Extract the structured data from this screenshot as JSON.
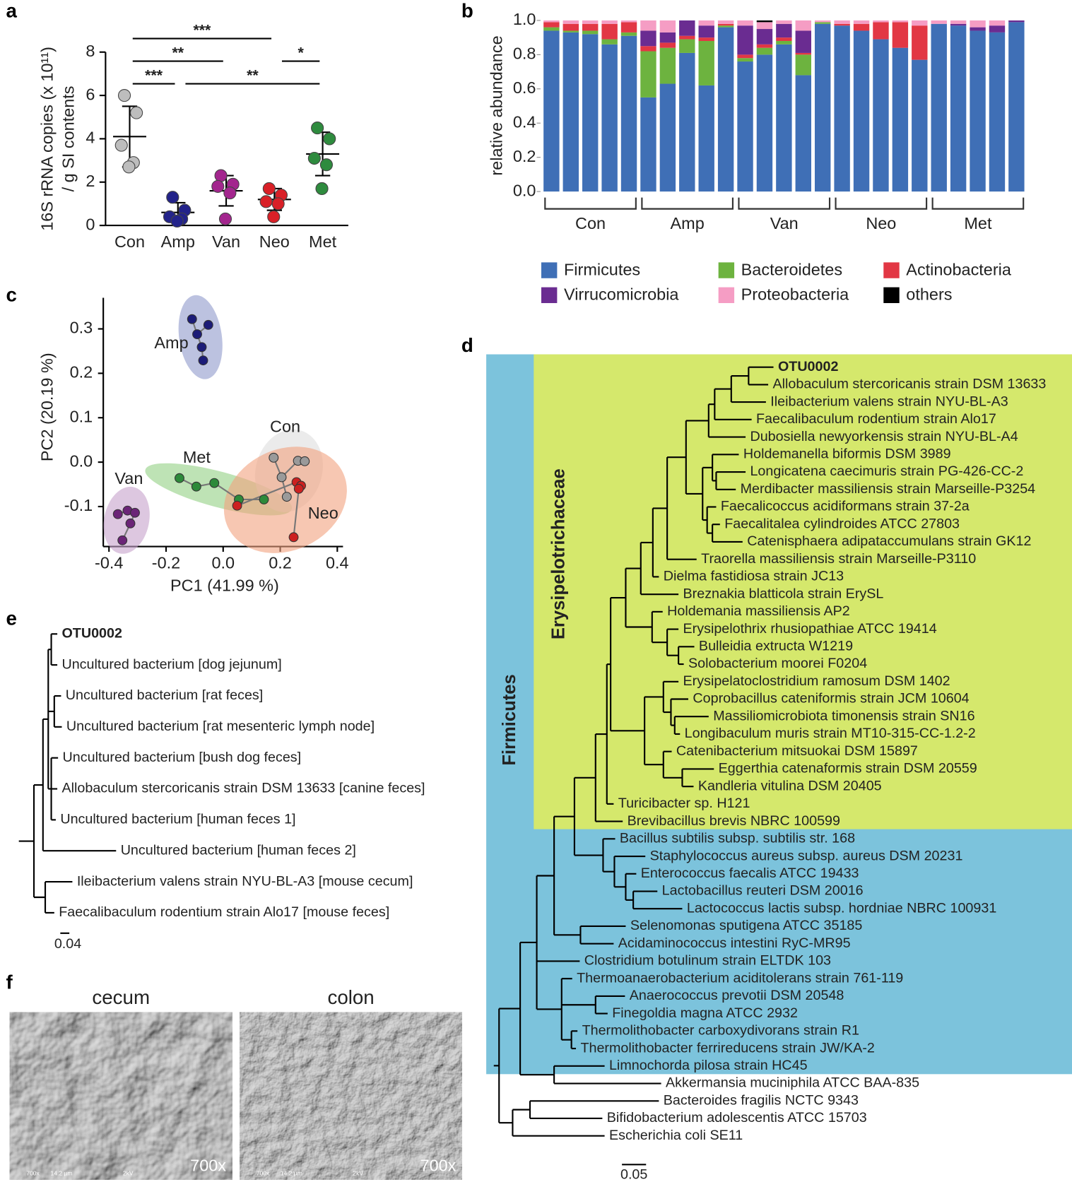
{
  "chart_data": [
    {
      "type": "dot",
      "panel": "a",
      "y_label": [
        "16S rRNA copies (x 10¹¹)",
        "/ g SI contents"
      ],
      "categories": [
        "Con",
        "Amp",
        "Van",
        "Neo",
        "Met"
      ],
      "colors": [
        "#bdbdbd",
        "#23238a",
        "#a3268e",
        "#d92027",
        "#2e8b3e"
      ],
      "values": [
        [
          6.0,
          5.2,
          3.7,
          2.9,
          2.7
        ],
        [
          1.3,
          0.7,
          0.4,
          0.3,
          0.2
        ],
        [
          2.3,
          1.9,
          1.8,
          1.5,
          0.3
        ],
        [
          1.7,
          1.4,
          1.1,
          1.0,
          0.4
        ],
        [
          4.5,
          4.0,
          3.1,
          2.8,
          1.7
        ]
      ],
      "mean": [
        4.1,
        0.6,
        1.6,
        1.2,
        3.3
      ],
      "sd": [
        1.4,
        0.45,
        0.7,
        0.5,
        1.0
      ],
      "ylim": [
        0,
        8
      ],
      "yticks": [
        0,
        2,
        4,
        6,
        8
      ],
      "comparisons": [
        {
          "groups": [
            "Con",
            "Neo"
          ],
          "label": "***"
        },
        {
          "groups": [
            "Con",
            "Van"
          ],
          "label": "**"
        },
        {
          "groups": [
            "Con",
            "Amp"
          ],
          "label": "***"
        },
        {
          "groups": [
            "Neo",
            "Met"
          ],
          "label": "*"
        },
        {
          "groups": [
            "Amp",
            "Met"
          ],
          "label": "**"
        }
      ]
    },
    {
      "type": "stacked_bar",
      "panel": "b",
      "y_label": "relative abundance",
      "categories": [
        null,
        null,
        null,
        null,
        null,
        null,
        null,
        null,
        null,
        null,
        null,
        null,
        null,
        null,
        null,
        null,
        null,
        null,
        null,
        null,
        null,
        null,
        null,
        null,
        null
      ],
      "groups": [
        "Con",
        "Amp",
        "Van",
        "Neo",
        "Met"
      ],
      "ylim": [
        0,
        1
      ],
      "yticks": [
        {
          "value": 0,
          "label": "0.0"
        },
        0.2,
        0.4,
        0.6,
        0.8,
        {
          "value": 1,
          "label": "1.0"
        }
      ],
      "series": [
        {
          "name": "Firmicutes",
          "color": "#3f6fb6",
          "values": [
            0.94,
            0.93,
            0.92,
            0.86,
            0.91,
            0.55,
            0.63,
            0.81,
            0.62,
            0.96,
            0.76,
            0.8,
            0.86,
            0.68,
            0.98,
            0.97,
            0.94,
            0.89,
            0.84,
            0.77,
            0.98,
            0.97,
            0.94,
            0.93,
            0.99
          ]
        },
        {
          "name": "Bacteroidetes",
          "color": "#6db33f",
          "values": [
            0.02,
            0.01,
            0.02,
            0.03,
            0.02,
            0.27,
            0.21,
            0.08,
            0.26,
            0.01,
            0.02,
            0.04,
            0.02,
            0.12,
            0.01,
            0,
            0,
            0,
            0,
            0,
            0,
            0,
            0,
            0,
            0
          ]
        },
        {
          "name": "Actinobacteria",
          "color": "#e23744",
          "values": [
            0.03,
            0.04,
            0.04,
            0.09,
            0.06,
            0.03,
            0.03,
            0.02,
            0.02,
            0.01,
            0.02,
            0.02,
            0.02,
            0.01,
            0,
            0.01,
            0.04,
            0.1,
            0.15,
            0.2,
            0,
            0,
            0,
            0,
            0
          ]
        },
        {
          "name": "Virrucomicrobia",
          "color": "#6a2c91",
          "values": [
            0,
            0,
            0,
            0,
            0,
            0.09,
            0.06,
            0.09,
            0.07,
            0,
            0.17,
            0.09,
            0.08,
            0.13,
            0,
            0,
            0,
            0,
            0,
            0,
            0,
            0.01,
            0.02,
            0.04,
            0.01
          ]
        },
        {
          "name": "Proteobacteria",
          "color": "#f59dc4",
          "values": [
            0.01,
            0.02,
            0.02,
            0.02,
            0.01,
            0.06,
            0.07,
            0,
            0.03,
            0.02,
            0.03,
            0.04,
            0.02,
            0.06,
            0.01,
            0.02,
            0.02,
            0.01,
            0.01,
            0.03,
            0.02,
            0.02,
            0.04,
            0.03,
            0
          ]
        },
        {
          "name": "others",
          "color": "#000000",
          "values": [
            0,
            0,
            0,
            0,
            0,
            0,
            0,
            0,
            0,
            0,
            0,
            0.01,
            0,
            0,
            0,
            0,
            0,
            0,
            0,
            0,
            0,
            0,
            0,
            0,
            0
          ]
        }
      ]
    },
    {
      "type": "scatter",
      "panel": "c",
      "x_label": "PC1 (41.99 %)",
      "y_label": "PC2 (20.19 %)",
      "xlim": [
        -0.42,
        0.42
      ],
      "ylim": [
        -0.19,
        0.37
      ],
      "xticks": [
        -0.4,
        -0.2,
        {
          "value": 0,
          "label": "0.0"
        },
        0.2,
        0.4
      ],
      "yticks": [
        -0.1,
        {
          "value": 0,
          "label": "0.0"
        },
        0.1,
        0.2,
        0.3
      ],
      "series": [
        {
          "name": "Amp",
          "color": "#1c1c78",
          "fill": "#8f9acb",
          "x": [
            -0.109,
            -0.052,
            -0.091,
            -0.075,
            -0.07
          ],
          "y": [
            0.322,
            0.309,
            0.288,
            0.259,
            0.229
          ]
        },
        {
          "name": "Van",
          "color": "#6b2477",
          "fill": "#c7a2cb",
          "x": [
            -0.369,
            -0.335,
            -0.309,
            -0.325,
            -0.353
          ],
          "y": [
            -0.117,
            -0.109,
            -0.114,
            -0.138,
            -0.176
          ]
        },
        {
          "name": "Met",
          "color": "#2d8a3a",
          "fill": "#93d083",
          "x": [
            -0.153,
            -0.094,
            -0.031,
            0.055,
            0.143
          ],
          "y": [
            -0.036,
            -0.055,
            -0.047,
            -0.084,
            -0.084
          ]
        },
        {
          "name": "Con",
          "color": "#9a9a9a",
          "fill": "#dedede",
          "x": [
            0.177,
            0.262,
            0.286,
            0.205,
            0.223
          ],
          "y": [
            0.01,
            0.003,
            0.002,
            -0.034,
            -0.078
          ]
        },
        {
          "name": "Neo",
          "color": "#cc2020",
          "fill": "#f1a27e",
          "x": [
            0.257,
            0.273,
            0.049,
            0.247,
            0.265
          ],
          "y": [
            -0.045,
            -0.053,
            -0.098,
            -0.169,
            -0.06
          ]
        }
      ]
    }
  ],
  "tree_d": {
    "panel": "d",
    "clades": [
      {
        "label": "Firmicutes",
        "color": "#7cc3dc"
      },
      {
        "label": "Erysipelotrichaceae",
        "color": "#d5e86c"
      }
    ],
    "leaves": [
      {
        "label": "OTU0002",
        "bold": true
      },
      {
        "label": "Allobaculum stercoricanis strain DSM 13633"
      },
      {
        "label": "Ileibacterium valens strain NYU-BL-A3"
      },
      {
        "label": "Faecalibaculum rodentium strain Alo17"
      },
      {
        "label": "Dubosiella newyorkensis strain NYU-BL-A4"
      },
      {
        "label": "Holdemanella biformis DSM 3989"
      },
      {
        "label": "Longicatena caecimuris strain PG-426-CC-2"
      },
      {
        "label": "Merdibacter massiliensis strain Marseille-P3254"
      },
      {
        "label": "Faecalicoccus acidiformans strain 37-2a"
      },
      {
        "label": "Faecalitalea cylindroides ATCC 27803"
      },
      {
        "label": "Catenisphaera adipataccumulans strain GK12"
      },
      {
        "label": "Traorella massiliensis strain Marseille-P3110"
      },
      {
        "label": "Dielma fastidiosa strain JC13"
      },
      {
        "label": "Breznakia blatticola strain ErySL"
      },
      {
        "label": "Holdemania massiliensis AP2"
      },
      {
        "label": "Erysipelothrix rhusiopathiae ATCC 19414"
      },
      {
        "label": "Bulleidia extructa W1219"
      },
      {
        "label": "Solobacterium moorei F0204"
      },
      {
        "label": "Erysipelatoclostridium ramosum DSM 1402"
      },
      {
        "label": "Coprobacillus cateniformis strain JCM 10604"
      },
      {
        "label": "Massiliomicrobiota timonensis strain SN16"
      },
      {
        "label": "Longibaculum muris strain MT10-315-CC-1.2-2"
      },
      {
        "label": "Catenibacterium mitsuokai DSM 15897"
      },
      {
        "label": "Eggerthia catenaformis strain DSM 20559"
      },
      {
        "label": "Kandleria vitulina DSM 20405"
      },
      {
        "label": "Turicibacter sp. H121"
      },
      {
        "label": "Brevibacillus brevis NBRC 100599"
      },
      {
        "label": "Bacillus subtilis subsp. subtilis str. 168"
      },
      {
        "label": "Staphylococcus aureus subsp. aureus DSM 20231"
      },
      {
        "label": "Enterococcus faecalis ATCC 19433"
      },
      {
        "label": "Lactobacillus reuteri DSM 20016"
      },
      {
        "label": "Lactococcus lactis subsp. hordniae NBRC 100931"
      },
      {
        "label": "Selenomonas sputigena ATCC 35185"
      },
      {
        "label": "Acidaminococcus intestini RyC-MR95"
      },
      {
        "label": "Clostridium botulinum strain ELTDK 103"
      },
      {
        "label": "Thermoanaerobacterium aciditolerans strain 761-119"
      },
      {
        "label": "Anaerococcus prevotii DSM 20548"
      },
      {
        "label": "Finegoldia magna ATCC 2932"
      },
      {
        "label": "Thermolithobacter carboxydivorans strain R1"
      },
      {
        "label": "Thermolithobacter ferrireducens strain JW/KA-2"
      },
      {
        "label": "Limnochorda pilosa strain HC45"
      },
      {
        "label": "Akkermansia muciniphila ATCC BAA-835"
      },
      {
        "label": "Bacteroides fragilis NCTC 9343"
      },
      {
        "label": "Bifidobacterium adolescentis ATCC 15703"
      },
      {
        "label": "Escherichia coli SE11"
      }
    ],
    "scale": "0.05"
  },
  "tree_e": {
    "panel": "e",
    "leaves": [
      {
        "label": "OTU0002",
        "bold": true
      },
      {
        "label": "Uncultured bacterium [dog jejunum]"
      },
      {
        "label": "Uncultured bacterium [rat feces]"
      },
      {
        "label": "Uncultured bacterium [rat mesenteric lymph node]"
      },
      {
        "label": "Uncultured bacterium [bush dog feces]"
      },
      {
        "label": "Allobaculum stercoricanis strain DSM 13633 [canine feces]"
      },
      {
        "label": "Uncultured bacterium [human feces 1]"
      },
      {
        "label": "Uncultured bacterium [human feces 2]"
      },
      {
        "label": "Ileibacterium valens strain NYU-BL-A3 [mouse cecum]"
      },
      {
        "label": "Faecalibaculum rodentium strain Alo17 [mouse feces]"
      }
    ],
    "scale": "0.04"
  },
  "images_f": {
    "panel": "f",
    "images": [
      {
        "title": "cecum",
        "magnification": "700x",
        "info": [
          "14.2 µm",
          "2kV"
        ]
      },
      {
        "title": "colon",
        "magnification": "700x",
        "info": [
          "14.2 µm",
          "2kV"
        ]
      }
    ]
  }
}
